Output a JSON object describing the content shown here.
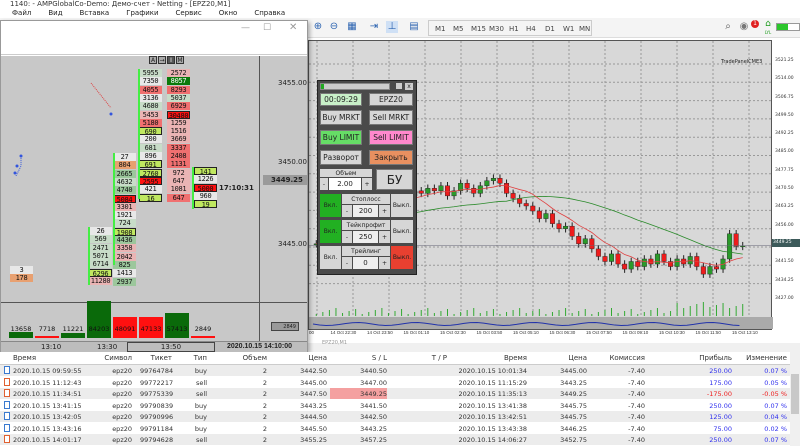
{
  "window": {
    "title": "1140: - AMPGlobalCo-Demo: Демо-счет - Netting - [EPZ20,M1]"
  },
  "menu": [
    "Файл",
    "Вид",
    "Вставка",
    "Графики",
    "Сервис",
    "Окно",
    "Справка"
  ],
  "toolbar": {
    "timeframes": [
      "M1",
      "M5",
      "M15",
      "M30",
      "H1",
      "H4",
      "D1",
      "W1",
      "MN"
    ],
    "notifications": "1",
    "signal_label": "LYL"
  },
  "dom_window": {
    "header_buttons": [
      "A",
      "→",
      "I",
      "M"
    ],
    "price_labels": [
      "3455.00",
      "3450.00",
      "3445.00"
    ],
    "current_price": "3449.25",
    "timer": "17:10:31",
    "volume_box": "2849",
    "time_labels": [
      "13:10",
      "13:30",
      "13:50",
      "2020.10.15 14:10:00"
    ],
    "col_a": [
      [
        "5955",
        "lg"
      ],
      [
        "7350",
        "w"
      ],
      [
        "4055",
        "r"
      ],
      [
        "3136",
        "w"
      ],
      [
        "4680",
        "lg"
      ],
      [
        "5453",
        "lr"
      ],
      [
        "5180",
        "r"
      ],
      [
        "690",
        "y"
      ],
      [
        "200",
        "w"
      ],
      [
        "681",
        "lg"
      ],
      [
        "896",
        "w"
      ],
      [
        "691",
        "y"
      ],
      [
        "2760",
        "y"
      ],
      [
        "2595",
        "R"
      ],
      [
        "421",
        "w"
      ],
      [
        "16",
        "y"
      ]
    ],
    "col_b": [
      [
        "2572",
        "lr"
      ],
      [
        "8057",
        "dg"
      ],
      [
        "8293",
        "r"
      ],
      [
        "5037",
        "lg"
      ],
      [
        "6929",
        "r"
      ],
      [
        "30480",
        "R"
      ],
      [
        "1259",
        "lr"
      ],
      [
        "1516",
        "lr"
      ],
      [
        "3669",
        "lr"
      ],
      [
        "3337",
        "r"
      ],
      [
        "2408",
        "r"
      ],
      [
        "1131",
        "r"
      ],
      [
        "972",
        "lr"
      ],
      [
        "647",
        "lr"
      ],
      [
        "1081",
        "lr"
      ],
      [
        "647",
        "r"
      ]
    ],
    "col_c": [
      [
        "27",
        "w"
      ],
      [
        "804",
        "o"
      ],
      [
        "2665",
        "g"
      ],
      [
        "4632",
        "lg"
      ],
      [
        "4740",
        "g"
      ],
      [
        "5084",
        "R"
      ],
      [
        "3301",
        "lr"
      ],
      [
        "1921",
        "w"
      ],
      [
        "724",
        "lg"
      ],
      [
        "1908",
        "y"
      ],
      [
        "4436",
        "g"
      ],
      [
        "3358",
        "lr"
      ],
      [
        "2042",
        "lr"
      ],
      [
        "825",
        "g"
      ],
      [
        "1413",
        "w"
      ],
      [
        "2937",
        "g"
      ]
    ],
    "col_d": [
      [
        "141",
        "y"
      ],
      [
        "1226",
        "w"
      ],
      [
        "5000",
        "R"
      ],
      [
        "960",
        "w"
      ],
      [
        "19",
        "y"
      ]
    ],
    "col_e": [
      [
        "26",
        "w"
      ],
      [
        "569",
        "lg"
      ],
      [
        "2471",
        "lg"
      ],
      [
        "5071",
        "lg"
      ],
      [
        "6714",
        "lg"
      ],
      [
        "6296",
        "y"
      ],
      [
        "11280",
        "lr"
      ]
    ],
    "col_f": [
      [
        "3",
        "w"
      ],
      [
        "178",
        "o"
      ]
    ],
    "volume_bars": [
      [
        "13658",
        0.16,
        "g"
      ],
      [
        "7718",
        0.02,
        "r"
      ],
      [
        "11221",
        0.13,
        "g"
      ],
      [
        "84203",
        1.0,
        "g"
      ],
      [
        "48091",
        0.57,
        "r"
      ],
      [
        "47133",
        0.56,
        "r"
      ],
      [
        "57413",
        0.68,
        "g"
      ],
      [
        "2849",
        0.02,
        "r"
      ]
    ]
  },
  "trade_panel": {
    "timer": "00:09:29",
    "symbol": "EPZ20",
    "buy_market": "Buy MRKT",
    "sell_market": "Sell MRKT",
    "buy_limit": "Buy LIMIT",
    "sell_limit": "Sell LIMIT",
    "reverse": "Разворот",
    "close": "Закрыть",
    "volume_label": "Объем",
    "volume": "2.00",
    "breakeven": "БУ",
    "minus": "-",
    "plus": "+",
    "on": "Вкл.",
    "off": "Выкл.",
    "stoploss_label": "Стоплосс",
    "stoploss": "200",
    "takeprofit_label": "Тейкпрофит",
    "takeprofit": "250",
    "trailing_label": "Трейлинг",
    "trailing": "0",
    "colors": {
      "green": "#22b022",
      "red": "#e84030",
      "pink": "#ff88cc",
      "orange": "#e89060",
      "timer_bg": "#c8f0c8"
    }
  },
  "main_chart": {
    "indicator_label": "TradePanelCME3",
    "price_ticks": [
      "3521.25",
      "3514.00",
      "3506.75",
      "3499.50",
      "3492.25",
      "3485.00",
      "3477.75",
      "3470.50",
      "3463.25",
      "3456.00",
      "3441.50",
      "3434.25",
      "3427.00"
    ],
    "current_price": "3449.25",
    "time_labels": [
      "00",
      "14 Oct 22:30",
      "14 Oct 23:50",
      "15 Oct 01:10",
      "15 Oct 02:30",
      "15 Oct 03:50",
      "15 Oct 05:10",
      "15 Oct 06:30",
      "15 Oct 07:50",
      "15 Oct 09:10",
      "15 Oct 10:30",
      "15 Oct 11:50",
      "15 Oct 13:10"
    ],
    "tab_label": "EPZ20,M1",
    "closes": [
      3450,
      3451,
      3453,
      3455,
      3458,
      3460,
      3462,
      3463,
      3465,
      3466,
      3467,
      3468,
      3469,
      3470,
      3469,
      3471,
      3470,
      3472,
      3471,
      3473,
      3469,
      3471,
      3474,
      3472,
      3470,
      3473,
      3475,
      3476,
      3474,
      3470,
      3468,
      3466,
      3465,
      3463,
      3460,
      3462,
      3458,
      3456,
      3457,
      3453,
      3450,
      3452,
      3448,
      3445,
      3443,
      3446,
      3442,
      3440,
      3443,
      3441,
      3444,
      3442,
      3446,
      3443,
      3441,
      3444,
      3442,
      3445,
      3441,
      3438,
      3441,
      3440,
      3444,
      3454,
      3449,
      3449.25
    ]
  },
  "trades": {
    "headers": [
      "Время",
      "Символ",
      "Тикет",
      "Тип",
      "Объем",
      "Цена",
      "S / L",
      "T / P",
      "Время",
      "Цена",
      "Комиссия",
      "Прибыль",
      "Изменение"
    ],
    "rows": [
      [
        "2020.10.15 09:59:55",
        "epz20",
        "99764784",
        "buy",
        "2",
        "3442.50",
        "3440.50",
        "",
        "2020.10.15 10:01:34",
        "3445.00",
        "-7.40",
        "250.00",
        "0.07 %"
      ],
      [
        "2020.10.15 11:12:43",
        "epz20",
        "99772217",
        "sell",
        "2",
        "3445.00",
        "3447.00",
        "",
        "2020.10.15 11:15:29",
        "3443.25",
        "-7.40",
        "175.00",
        "0.05 %"
      ],
      [
        "2020.10.15 11:34:51",
        "epz20",
        "99775339",
        "sell",
        "2",
        "3447.50",
        "3449.25",
        "",
        "2020.10.15 11:35:13",
        "3449.25",
        "-7.40",
        "-175.00",
        "-0.05 %"
      ],
      [
        "2020.10.15 13:41:15",
        "epz20",
        "99790839",
        "buy",
        "2",
        "3443.25",
        "3441.50",
        "",
        "2020.10.15 13:41:38",
        "3445.75",
        "-7.40",
        "250.00",
        "0.07 %"
      ],
      [
        "2020.10.15 13:42:05",
        "epz20",
        "99790996",
        "buy",
        "2",
        "3444.50",
        "3442.50",
        "",
        "2020.10.15 13:42:51",
        "3445.75",
        "-7.40",
        "125.00",
        "0.04 %"
      ],
      [
        "2020.10.15 13:43:16",
        "epz20",
        "99791184",
        "buy",
        "2",
        "3445.50",
        "3443.25",
        "",
        "2020.10.15 13:43:38",
        "3446.25",
        "-7.40",
        "75.00",
        "0.02 %"
      ],
      [
        "2020.10.15 14:01:17",
        "epz20",
        "99794628",
        "sell",
        "2",
        "3455.25",
        "3457.25",
        "",
        "2020.10.15 14:06:27",
        "3452.75",
        "-7.40",
        "250.00",
        "0.07 %"
      ]
    ]
  }
}
